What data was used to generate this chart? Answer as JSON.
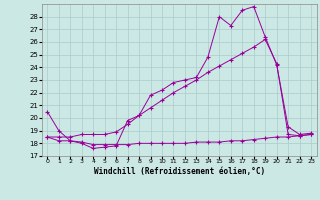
{
  "xlabel": "Windchill (Refroidissement éolien,°C)",
  "background_color": "#cce8e4",
  "grid_color": "#aacccc",
  "line_color": "#990099",
  "xlim_min": -0.5,
  "xlim_max": 23.5,
  "ylim_min": 17,
  "ylim_max": 29,
  "xticks": [
    0,
    1,
    2,
    3,
    4,
    5,
    6,
    7,
    8,
    9,
    10,
    11,
    12,
    13,
    14,
    15,
    16,
    17,
    18,
    19,
    20,
    21,
    22,
    23
  ],
  "yticks": [
    17,
    18,
    19,
    20,
    21,
    22,
    23,
    24,
    25,
    26,
    27,
    28
  ],
  "line1_x": [
    0,
    1,
    2,
    3,
    4,
    5,
    6,
    7,
    8,
    9,
    10,
    11,
    12,
    13,
    14,
    15,
    16,
    17,
    18,
    19,
    20,
    21,
    22,
    23
  ],
  "line1_y": [
    20.5,
    19.0,
    18.2,
    18.0,
    17.6,
    17.7,
    17.8,
    19.8,
    20.2,
    21.8,
    22.2,
    22.8,
    23.0,
    23.2,
    24.8,
    28.0,
    27.3,
    28.5,
    28.8,
    26.4,
    24.2,
    19.3,
    18.7,
    18.8
  ],
  "line2_x": [
    0,
    1,
    2,
    3,
    4,
    5,
    6,
    7,
    8,
    9,
    10,
    11,
    12,
    13,
    14,
    15,
    16,
    17,
    18,
    19,
    20,
    21,
    22,
    23
  ],
  "line2_y": [
    18.5,
    18.2,
    18.2,
    18.1,
    17.9,
    17.9,
    17.9,
    17.9,
    18.0,
    18.0,
    18.0,
    18.0,
    18.0,
    18.1,
    18.1,
    18.1,
    18.2,
    18.2,
    18.3,
    18.4,
    18.5,
    18.5,
    18.6,
    18.7
  ],
  "line3_x": [
    0,
    1,
    2,
    3,
    4,
    5,
    6,
    7,
    8,
    9,
    10,
    11,
    12,
    13,
    14,
    15,
    16,
    17,
    18,
    19,
    20,
    21,
    22,
    23
  ],
  "line3_y": [
    18.5,
    18.5,
    18.5,
    18.7,
    18.7,
    18.7,
    18.9,
    19.5,
    20.2,
    20.8,
    21.4,
    22.0,
    22.5,
    23.0,
    23.6,
    24.1,
    24.6,
    25.1,
    25.6,
    26.2,
    24.3,
    18.7,
    18.6,
    18.7
  ]
}
